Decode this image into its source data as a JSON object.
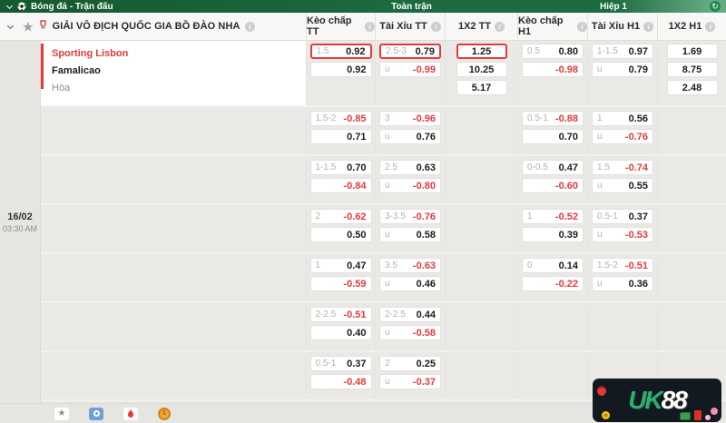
{
  "topbar": {
    "sport": "Bóng đá - Trận đấu",
    "full_match": "Toàn trận",
    "first_half": "Hiệp 1"
  },
  "header": {
    "league": "GIẢI VÔ ĐỊCH QUỐC GIA BỒ ĐÀO NHA",
    "columns": [
      "Kèo chấp TT",
      "Tài Xỉu TT",
      "1X2 TT",
      "Kèo chấp H1",
      "Tài Xỉu H1",
      "1X2 H1"
    ]
  },
  "match": {
    "date": "16/02",
    "time": "03:30 AM",
    "home": "Sporting Lisbon",
    "away": "Famalicao",
    "draw": "Hòa"
  },
  "colors": {
    "accent_green": "#1b6a40",
    "highlight_red": "#e23b3b",
    "negative_odds": "#e23b3b"
  },
  "footer": {
    "icons": [
      "favorite-star",
      "saved-bets",
      "hot-match",
      "coin"
    ]
  },
  "logo": {
    "uk": "UK",
    "n88": "88"
  },
  "rows": [
    {
      "hdp_tt": {
        "line": "1.5",
        "top": "0.92",
        "bottom": "0.92",
        "hl_top": true
      },
      "ou_tt": {
        "line": "2.5-3",
        "top": "0.79",
        "bottom": "-0.99",
        "bottom_label": "u",
        "hl_top": true
      },
      "x12_tt": {
        "values": [
          "1.25",
          "10.25",
          "5.17"
        ],
        "hl_first": true
      },
      "hdp_h1": {
        "line": "0.5",
        "top": "0.80",
        "bottom": "-0.98"
      },
      "ou_h1": {
        "line": "1-1.5",
        "top": "0.97",
        "bottom": "0.79",
        "bottom_label": "u"
      },
      "x12_h1": {
        "values": [
          "1.69",
          "8.75",
          "2.48"
        ]
      }
    },
    {
      "hdp_tt": {
        "line": "1.5-2",
        "top": "-0.85",
        "bottom": "0.71"
      },
      "ou_tt": {
        "line": "3",
        "top": "-0.96",
        "bottom": "0.76",
        "bottom_label": "u"
      },
      "hdp_h1": {
        "line": "0.5-1",
        "top": "-0.88",
        "bottom": "0.70"
      },
      "ou_h1": {
        "line": "1",
        "top": "0.56",
        "bottom": "-0.76",
        "bottom_label": "u"
      }
    },
    {
      "hdp_tt": {
        "line": "1-1.5",
        "top": "0.70",
        "bottom": "-0.84"
      },
      "ou_tt": {
        "line": "2.5",
        "top": "0.63",
        "bottom": "-0.80",
        "bottom_label": "u"
      },
      "hdp_h1": {
        "line": "0-0.5",
        "top": "0.47",
        "bottom": "-0.60"
      },
      "ou_h1": {
        "line": "1.5",
        "top": "-0.74",
        "bottom": "0.55",
        "bottom_label": "u"
      }
    },
    {
      "hdp_tt": {
        "line": "2",
        "top": "-0.62",
        "bottom": "0.50"
      },
      "ou_tt": {
        "line": "3-3.5",
        "top": "-0.76",
        "bottom": "0.58",
        "bottom_label": "u"
      },
      "hdp_h1": {
        "line": "1",
        "top": "-0.52",
        "bottom": "0.39"
      },
      "ou_h1": {
        "line": "0.5-1",
        "top": "0.37",
        "bottom": "-0.53",
        "bottom_label": "u"
      }
    },
    {
      "hdp_tt": {
        "line": "1",
        "top": "0.47",
        "bottom": "-0.59"
      },
      "ou_tt": {
        "line": "3.5",
        "top": "-0.63",
        "bottom": "0.46",
        "bottom_label": "u"
      },
      "hdp_h1": {
        "line": "0",
        "top": "0.14",
        "bottom": "-0.22"
      },
      "ou_h1": {
        "line": "1.5-2",
        "top": "-0.51",
        "bottom": "0.36",
        "bottom_label": "u"
      }
    },
    {
      "hdp_tt": {
        "line": "2-2.5",
        "top": "-0.51",
        "bottom": "0.40"
      },
      "ou_tt": {
        "line": "2-2.5",
        "top": "0.44",
        "bottom": "-0.58",
        "bottom_label": "u"
      }
    },
    {
      "hdp_tt": {
        "line": "0.5-1",
        "top": "0.37",
        "bottom": "-0.48"
      },
      "ou_tt": {
        "line": "2",
        "top": "0.25",
        "bottom": "-0.37",
        "bottom_label": "u"
      }
    }
  ]
}
